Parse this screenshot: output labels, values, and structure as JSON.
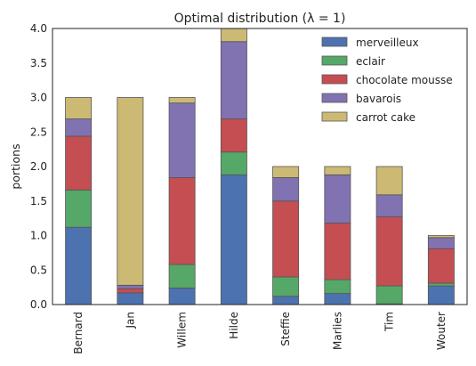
{
  "chart_data": {
    "type": "bar",
    "stacked": true,
    "title": "Optimal distribution (λ = 1)",
    "xlabel": "",
    "ylabel": "portions",
    "ylim": [
      0,
      4.0
    ],
    "yticks": [
      "0.0",
      "0.5",
      "1.0",
      "1.5",
      "2.0",
      "2.5",
      "3.0",
      "3.5",
      "4.0"
    ],
    "grid": false,
    "legend_position": "top-right",
    "categories": [
      "Bernard",
      "Jan",
      "Willem",
      "Hilde",
      "Steffie",
      "Marlies",
      "Tim",
      "Wouter"
    ],
    "series": [
      {
        "name": "merveilleux",
        "color": "#4c72b0",
        "values": [
          1.12,
          0.17,
          0.24,
          1.88,
          0.12,
          0.16,
          0.01,
          0.27
        ]
      },
      {
        "name": "eclair",
        "color": "#55a868",
        "values": [
          0.54,
          0.0,
          0.34,
          0.33,
          0.28,
          0.2,
          0.26,
          0.04
        ]
      },
      {
        "name": "chocolate mousse",
        "color": "#c44e52",
        "values": [
          0.78,
          0.06,
          1.26,
          0.48,
          1.1,
          0.82,
          1.0,
          0.5
        ]
      },
      {
        "name": "bavarois",
        "color": "#8172b2",
        "values": [
          0.25,
          0.05,
          1.08,
          1.12,
          0.34,
          0.7,
          0.32,
          0.16
        ]
      },
      {
        "name": "carrot cake",
        "color": "#ccb974",
        "values": [
          0.31,
          2.72,
          0.08,
          0.19,
          0.16,
          0.12,
          0.41,
          0.03
        ]
      }
    ]
  }
}
